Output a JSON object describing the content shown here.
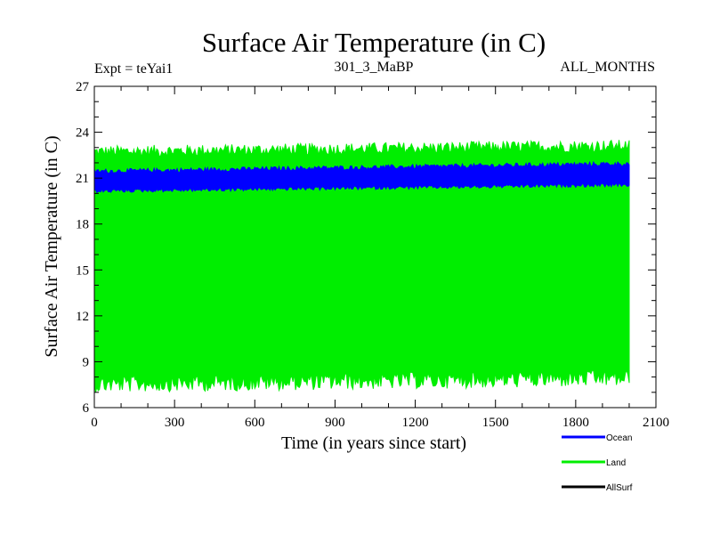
{
  "chart_data": {
    "type": "area",
    "title": "Surface Air Temperature (in C)",
    "subtitle_left": "Expt = teYai1",
    "subtitle_center": "301_3_MaBP",
    "subtitle_right": "ALL_MONTHS",
    "xlabel": "Time (in years since start)",
    "ylabel": "Surface Air Temperature (in C)",
    "xlim": [
      0,
      2100
    ],
    "ylim": [
      6,
      27
    ],
    "xticks": [
      0,
      300,
      600,
      900,
      1200,
      1500,
      1800,
      2100
    ],
    "yticks": [
      6,
      9,
      12,
      15,
      18,
      21,
      24,
      27
    ],
    "x_minor_step": 100,
    "y_minor_step": 1,
    "x_data_range": [
      0,
      2000
    ],
    "series": [
      {
        "name": "Land",
        "color": "#00ee00",
        "upper": {
          "start": 22.6,
          "end": 23.0,
          "noise": 0.4
        },
        "lower": {
          "start": 7.7,
          "end": 8.1,
          "noise": 0.55
        }
      },
      {
        "name": "Ocean",
        "color": "#0000ff",
        "upper": {
          "start": 21.4,
          "end": 21.9,
          "noise": 0.15
        },
        "lower": {
          "start": 20.2,
          "end": 20.6,
          "noise": 0.12
        }
      },
      {
        "name": "AllSurf",
        "color": "#000000",
        "upper": null,
        "lower": null
      }
    ],
    "legend": {
      "placement": "bottom-right",
      "entries": [
        {
          "label": "Ocean",
          "color": "#0000ff"
        },
        {
          "label": "Land",
          "color": "#00ee00"
        },
        {
          "label": "AllSurf",
          "color": "#000000"
        }
      ]
    }
  }
}
